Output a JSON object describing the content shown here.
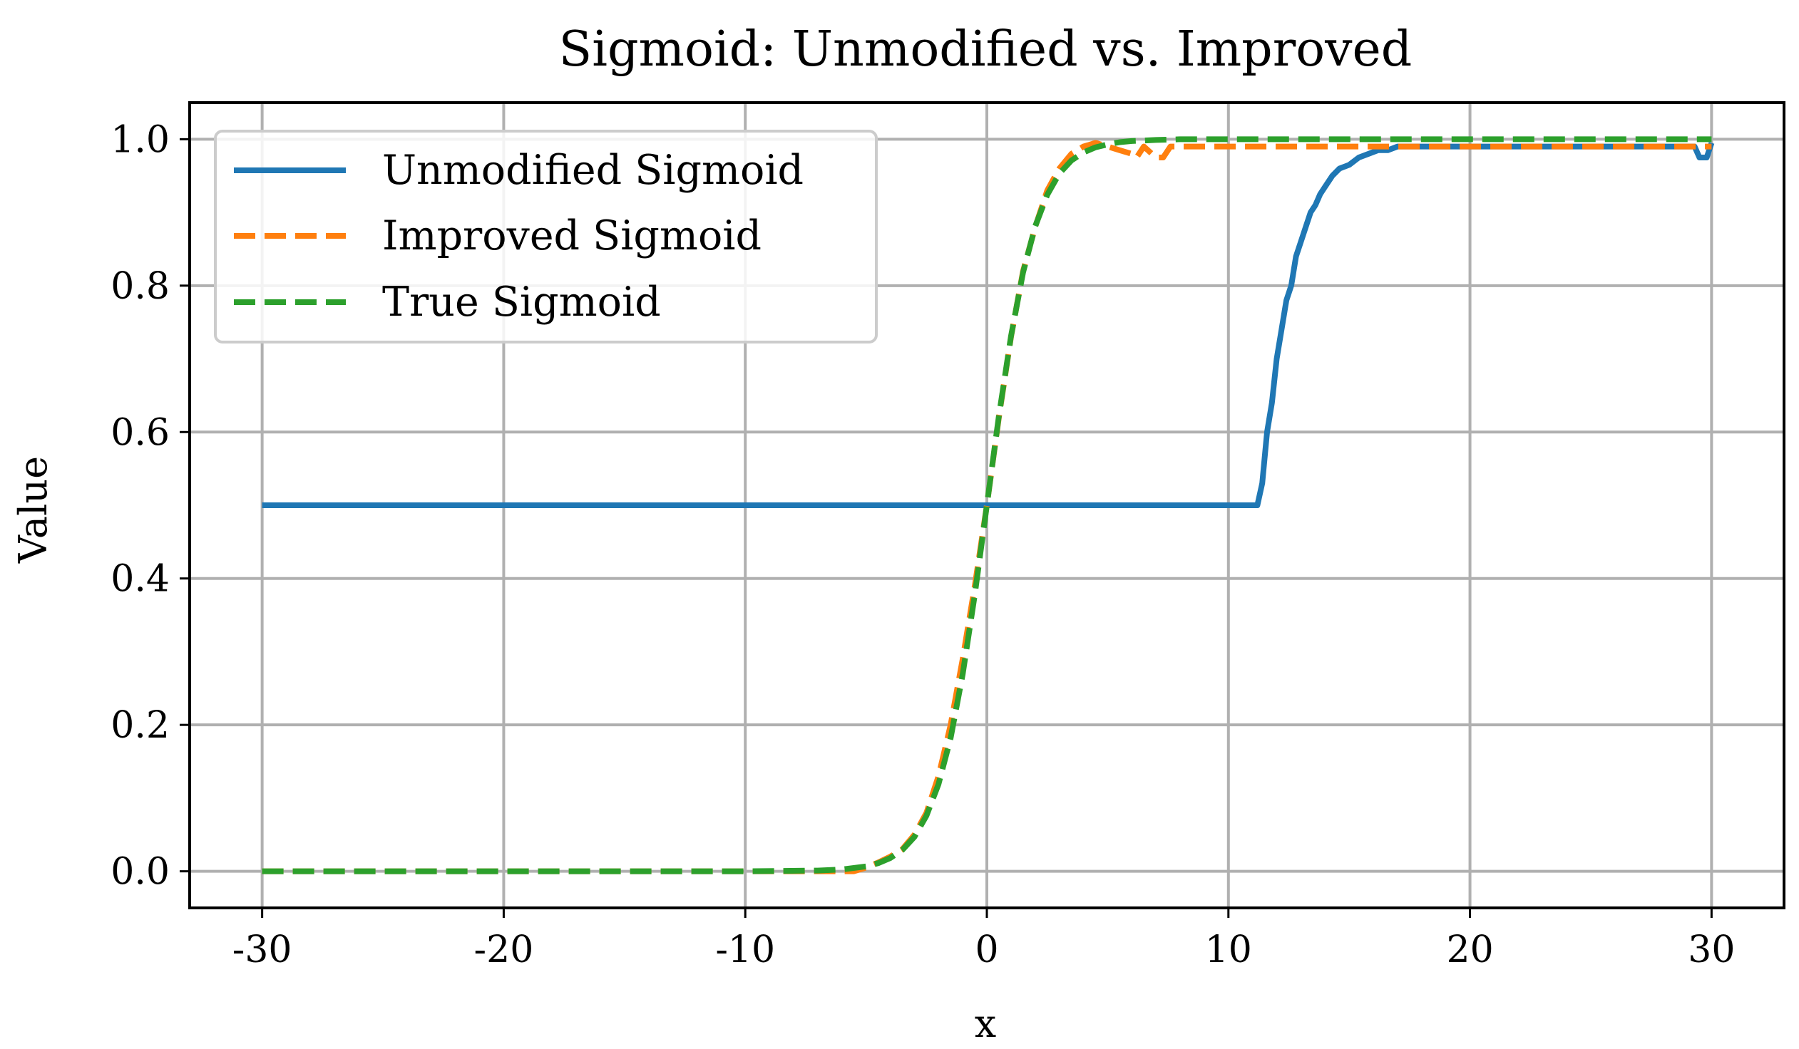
{
  "chart_data": {
    "type": "line",
    "title": "Sigmoid: Unmodified vs. Improved",
    "xlabel": "x",
    "ylabel": "Value",
    "xlim": [
      -33,
      33
    ],
    "ylim": [
      -0.05,
      1.05
    ],
    "xticks": [
      -30,
      -20,
      -10,
      0,
      10,
      20,
      30
    ],
    "xtick_labels": [
      "-30",
      "-20",
      "-10",
      "0",
      "10",
      "20",
      "30"
    ],
    "yticks": [
      0.0,
      0.2,
      0.4,
      0.6,
      0.8,
      1.0
    ],
    "ytick_labels": [
      "0.0",
      "0.2",
      "0.4",
      "0.6",
      "0.8",
      "1.0"
    ],
    "grid": true,
    "legend_position": "top-left",
    "series": [
      {
        "name": "Unmodified Sigmoid",
        "color": "#1f77b4",
        "style": "solid",
        "x": [
          -30,
          -20,
          -10,
          0,
          10,
          11,
          11.2,
          11.4,
          11.6,
          11.8,
          12.0,
          12.2,
          12.4,
          12.6,
          12.8,
          13.0,
          13.2,
          13.4,
          13.6,
          13.8,
          14.0,
          14.3,
          14.6,
          15.0,
          15.4,
          15.8,
          16.2,
          16.6,
          17.0,
          18,
          20,
          25,
          29.3,
          29.5,
          29.8,
          30
        ],
        "y": [
          0.5,
          0.5,
          0.5,
          0.5,
          0.5,
          0.5,
          0.5,
          0.53,
          0.6,
          0.64,
          0.7,
          0.74,
          0.78,
          0.8,
          0.84,
          0.86,
          0.88,
          0.9,
          0.91,
          0.925,
          0.935,
          0.95,
          0.96,
          0.965,
          0.975,
          0.98,
          0.985,
          0.985,
          0.99,
          0.99,
          0.99,
          0.99,
          0.99,
          0.975,
          0.975,
          0.995
        ]
      },
      {
        "name": "Improved Sigmoid",
        "color": "#ff7f0e",
        "style": "dashed",
        "x": [
          -30,
          -20,
          -10,
          -5.5,
          -5,
          -4.5,
          -4,
          -3.5,
          -3,
          -2.5,
          -2,
          -1.5,
          -1,
          -0.5,
          0,
          0.5,
          1,
          1.5,
          2,
          2.5,
          3,
          3.5,
          4,
          4.5,
          5,
          5.5,
          6,
          6.2,
          6.5,
          7,
          7.3,
          7.6,
          8,
          10,
          20,
          30
        ],
        "y": [
          0,
          0,
          0,
          0,
          0.005,
          0.012,
          0.02,
          0.03,
          0.05,
          0.08,
          0.13,
          0.2,
          0.29,
          0.39,
          0.5,
          0.62,
          0.73,
          0.82,
          0.88,
          0.93,
          0.96,
          0.98,
          0.99,
          0.995,
          0.99,
          0.985,
          0.98,
          0.975,
          0.99,
          0.975,
          0.975,
          0.99,
          0.99,
          0.99,
          0.99,
          0.99
        ]
      },
      {
        "name": "True Sigmoid",
        "color": "#2ca02c",
        "style": "dashed",
        "x": [
          -30,
          -20,
          -10,
          -7,
          -6,
          -5,
          -4.5,
          -4,
          -3.5,
          -3,
          -2.5,
          -2,
          -1.5,
          -1,
          -0.5,
          0,
          0.5,
          1,
          1.5,
          2,
          2.5,
          3,
          3.5,
          4,
          4.5,
          5,
          5.5,
          6,
          7,
          8,
          10,
          20,
          30
        ],
        "y": [
          0,
          0,
          0,
          0.001,
          0.0025,
          0.0067,
          0.011,
          0.018,
          0.029,
          0.047,
          0.076,
          0.119,
          0.182,
          0.269,
          0.378,
          0.5,
          0.622,
          0.731,
          0.818,
          0.881,
          0.924,
          0.953,
          0.971,
          0.982,
          0.989,
          0.993,
          0.996,
          0.9975,
          0.999,
          1.0,
          1.0,
          1.0,
          1.0
        ]
      }
    ]
  }
}
